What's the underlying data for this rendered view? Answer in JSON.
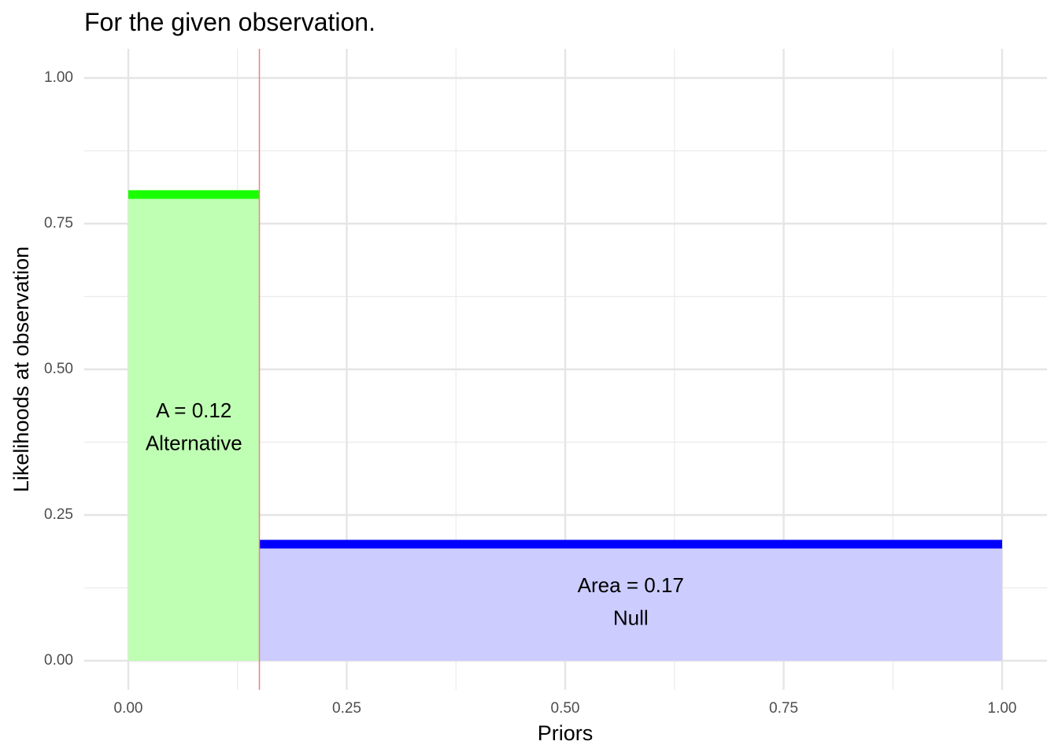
{
  "chart_data": {
    "type": "area",
    "title": "For the given observation.",
    "xlabel": "Priors",
    "ylabel": "Likelihoods at observation",
    "xlim": [
      0,
      1
    ],
    "ylim": [
      0,
      1
    ],
    "grid": true,
    "x_ticks": [
      0,
      0.25,
      0.5,
      0.75,
      1
    ],
    "x_tick_labels": [
      "0.00",
      "0.25",
      "0.50",
      "0.75",
      "1.00"
    ],
    "y_ticks": [
      0,
      0.25,
      0.5,
      0.75,
      1
    ],
    "y_tick_labels": [
      "0.00",
      "0.25",
      "0.50",
      "0.75",
      "1.00"
    ],
    "divider_x": 0.15,
    "divider_color": "#f08080",
    "series": [
      {
        "name": "Alternative",
        "x_start": 0,
        "x_end": 0.15,
        "value": 0.8,
        "fill_color": "#bfffb3",
        "line_color": "#1aff00",
        "annotation_lines": [
          "A = 0.12",
          "Alternative"
        ],
        "annotation_x": 0.075,
        "annotation_y": [
          0.427,
          0.371
        ]
      },
      {
        "name": "Null",
        "x_start": 0.15,
        "x_end": 1,
        "value": 0.2,
        "fill_color": "#ccccff",
        "line_color": "#0000ff",
        "annotation_lines": [
          "Area = 0.17",
          "Null"
        ],
        "annotation_x": 0.575,
        "annotation_y": [
          0.127,
          0.071
        ]
      }
    ]
  }
}
